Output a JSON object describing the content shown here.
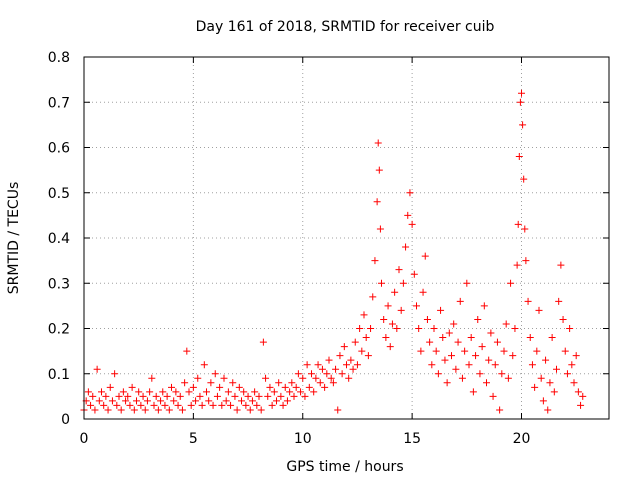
{
  "chart_data": {
    "type": "scatter",
    "title": "Day 161 of 2018, SRMTID for receiver cuib",
    "xlabel": "GPS time / hours",
    "ylabel": "SRMTID / TECUs",
    "xlim": [
      0,
      24
    ],
    "ylim": [
      0,
      0.8
    ],
    "xticks": [
      0,
      5,
      10,
      15,
      20
    ],
    "yticks": [
      0,
      0.1,
      0.2,
      0.3,
      0.4,
      0.5,
      0.6,
      0.7,
      0.8
    ],
    "xtick_labels": [
      "0",
      "5",
      "10",
      "15",
      "20"
    ],
    "ytick_labels": [
      "0",
      "0.1",
      "0.2",
      "0.3",
      "0.4",
      "0.5",
      "0.6",
      "0.7",
      "0.8"
    ],
    "grid": true,
    "marker": "+",
    "series": [
      {
        "name": "SRMTID",
        "color": "#ff0000",
        "points": [
          [
            0.0,
            0.02
          ],
          [
            0.1,
            0.04
          ],
          [
            0.2,
            0.06
          ],
          [
            0.3,
            0.03
          ],
          [
            0.4,
            0.05
          ],
          [
            0.5,
            0.02
          ],
          [
            0.6,
            0.11
          ],
          [
            0.7,
            0.04
          ],
          [
            0.8,
            0.06
          ],
          [
            0.9,
            0.03
          ],
          [
            1.0,
            0.05
          ],
          [
            1.1,
            0.02
          ],
          [
            1.2,
            0.07
          ],
          [
            1.3,
            0.04
          ],
          [
            1.4,
            0.1
          ],
          [
            1.5,
            0.03
          ],
          [
            1.6,
            0.05
          ],
          [
            1.7,
            0.02
          ],
          [
            1.8,
            0.06
          ],
          [
            1.9,
            0.04
          ],
          [
            2.0,
            0.05
          ],
          [
            2.1,
            0.03
          ],
          [
            2.2,
            0.07
          ],
          [
            2.3,
            0.02
          ],
          [
            2.4,
            0.04
          ],
          [
            2.5,
            0.06
          ],
          [
            2.6,
            0.03
          ],
          [
            2.7,
            0.05
          ],
          [
            2.8,
            0.02
          ],
          [
            2.9,
            0.04
          ],
          [
            3.0,
            0.06
          ],
          [
            3.1,
            0.09
          ],
          [
            3.2,
            0.03
          ],
          [
            3.3,
            0.05
          ],
          [
            3.4,
            0.02
          ],
          [
            3.5,
            0.04
          ],
          [
            3.6,
            0.06
          ],
          [
            3.7,
            0.03
          ],
          [
            3.8,
            0.05
          ],
          [
            3.9,
            0.02
          ],
          [
            4.0,
            0.07
          ],
          [
            4.1,
            0.04
          ],
          [
            4.2,
            0.06
          ],
          [
            4.3,
            0.03
          ],
          [
            4.4,
            0.05
          ],
          [
            4.5,
            0.02
          ],
          [
            4.6,
            0.08
          ],
          [
            4.7,
            0.15
          ],
          [
            4.8,
            0.06
          ],
          [
            4.9,
            0.03
          ],
          [
            5.0,
            0.07
          ],
          [
            5.1,
            0.04
          ],
          [
            5.2,
            0.09
          ],
          [
            5.3,
            0.05
          ],
          [
            5.4,
            0.03
          ],
          [
            5.5,
            0.12
          ],
          [
            5.6,
            0.06
          ],
          [
            5.7,
            0.04
          ],
          [
            5.8,
            0.08
          ],
          [
            5.9,
            0.03
          ],
          [
            6.0,
            0.1
          ],
          [
            6.1,
            0.05
          ],
          [
            6.2,
            0.07
          ],
          [
            6.3,
            0.03
          ],
          [
            6.4,
            0.09
          ],
          [
            6.5,
            0.04
          ],
          [
            6.6,
            0.06
          ],
          [
            6.7,
            0.03
          ],
          [
            6.8,
            0.08
          ],
          [
            6.9,
            0.05
          ],
          [
            7.0,
            0.02
          ],
          [
            7.1,
            0.07
          ],
          [
            7.2,
            0.04
          ],
          [
            7.3,
            0.06
          ],
          [
            7.4,
            0.03
          ],
          [
            7.5,
            0.05
          ],
          [
            7.6,
            0.02
          ],
          [
            7.7,
            0.04
          ],
          [
            7.8,
            0.06
          ],
          [
            7.9,
            0.03
          ],
          [
            8.0,
            0.05
          ],
          [
            8.1,
            0.02
          ],
          [
            8.2,
            0.17
          ],
          [
            8.3,
            0.09
          ],
          [
            8.4,
            0.05
          ],
          [
            8.5,
            0.07
          ],
          [
            8.6,
            0.03
          ],
          [
            8.7,
            0.06
          ],
          [
            8.8,
            0.04
          ],
          [
            8.9,
            0.08
          ],
          [
            9.0,
            0.05
          ],
          [
            9.1,
            0.03
          ],
          [
            9.2,
            0.07
          ],
          [
            9.3,
            0.04
          ],
          [
            9.4,
            0.06
          ],
          [
            9.5,
            0.08
          ],
          [
            9.6,
            0.05
          ],
          [
            9.7,
            0.07
          ],
          [
            9.8,
            0.1
          ],
          [
            9.9,
            0.06
          ],
          [
            10.0,
            0.09
          ],
          [
            10.1,
            0.05
          ],
          [
            10.2,
            0.12
          ],
          [
            10.3,
            0.07
          ],
          [
            10.4,
            0.1
          ],
          [
            10.5,
            0.06
          ],
          [
            10.6,
            0.09
          ],
          [
            10.7,
            0.12
          ],
          [
            10.8,
            0.08
          ],
          [
            10.9,
            0.11
          ],
          [
            11.0,
            0.07
          ],
          [
            11.1,
            0.1
          ],
          [
            11.2,
            0.13
          ],
          [
            11.3,
            0.09
          ],
          [
            11.4,
            0.08
          ],
          [
            11.5,
            0.11
          ],
          [
            11.6,
            0.02
          ],
          [
            11.7,
            0.14
          ],
          [
            11.8,
            0.1
          ],
          [
            11.9,
            0.16
          ],
          [
            12.0,
            0.12
          ],
          [
            12.1,
            0.09
          ],
          [
            12.2,
            0.13
          ],
          [
            12.3,
            0.11
          ],
          [
            12.4,
            0.17
          ],
          [
            12.5,
            0.12
          ],
          [
            12.6,
            0.2
          ],
          [
            12.7,
            0.15
          ],
          [
            12.8,
            0.23
          ],
          [
            12.9,
            0.18
          ],
          [
            13.0,
            0.14
          ],
          [
            13.1,
            0.2
          ],
          [
            13.2,
            0.27
          ],
          [
            13.3,
            0.35
          ],
          [
            13.4,
            0.48
          ],
          [
            13.45,
            0.61
          ],
          [
            13.5,
            0.55
          ],
          [
            13.55,
            0.42
          ],
          [
            13.6,
            0.3
          ],
          [
            13.7,
            0.22
          ],
          [
            13.8,
            0.18
          ],
          [
            13.9,
            0.25
          ],
          [
            14.0,
            0.16
          ],
          [
            14.1,
            0.21
          ],
          [
            14.2,
            0.28
          ],
          [
            14.3,
            0.2
          ],
          [
            14.4,
            0.33
          ],
          [
            14.5,
            0.24
          ],
          [
            14.6,
            0.3
          ],
          [
            14.7,
            0.38
          ],
          [
            14.8,
            0.45
          ],
          [
            14.9,
            0.5
          ],
          [
            15.0,
            0.43
          ],
          [
            15.1,
            0.32
          ],
          [
            15.2,
            0.25
          ],
          [
            15.3,
            0.2
          ],
          [
            15.4,
            0.15
          ],
          [
            15.5,
            0.28
          ],
          [
            15.6,
            0.36
          ],
          [
            15.7,
            0.22
          ],
          [
            15.8,
            0.17
          ],
          [
            15.9,
            0.12
          ],
          [
            16.0,
            0.2
          ],
          [
            16.1,
            0.15
          ],
          [
            16.2,
            0.1
          ],
          [
            16.3,
            0.24
          ],
          [
            16.4,
            0.18
          ],
          [
            16.5,
            0.13
          ],
          [
            16.6,
            0.08
          ],
          [
            16.7,
            0.19
          ],
          [
            16.8,
            0.14
          ],
          [
            16.9,
            0.21
          ],
          [
            17.0,
            0.11
          ],
          [
            17.1,
            0.17
          ],
          [
            17.2,
            0.26
          ],
          [
            17.3,
            0.09
          ],
          [
            17.4,
            0.15
          ],
          [
            17.5,
            0.3
          ],
          [
            17.6,
            0.12
          ],
          [
            17.7,
            0.18
          ],
          [
            17.8,
            0.06
          ],
          [
            17.9,
            0.14
          ],
          [
            18.0,
            0.22
          ],
          [
            18.1,
            0.1
          ],
          [
            18.2,
            0.16
          ],
          [
            18.3,
            0.25
          ],
          [
            18.4,
            0.08
          ],
          [
            18.5,
            0.13
          ],
          [
            18.6,
            0.19
          ],
          [
            18.7,
            0.05
          ],
          [
            18.8,
            0.12
          ],
          [
            18.9,
            0.17
          ],
          [
            19.0,
            0.02
          ],
          [
            19.1,
            0.1
          ],
          [
            19.2,
            0.15
          ],
          [
            19.3,
            0.21
          ],
          [
            19.4,
            0.09
          ],
          [
            19.5,
            0.3
          ],
          [
            19.6,
            0.14
          ],
          [
            19.7,
            0.2
          ],
          [
            19.8,
            0.34
          ],
          [
            19.85,
            0.43
          ],
          [
            19.9,
            0.58
          ],
          [
            19.95,
            0.7
          ],
          [
            20.0,
            0.72
          ],
          [
            20.05,
            0.65
          ],
          [
            20.1,
            0.53
          ],
          [
            20.15,
            0.42
          ],
          [
            20.2,
            0.35
          ],
          [
            20.3,
            0.26
          ],
          [
            20.4,
            0.18
          ],
          [
            20.5,
            0.12
          ],
          [
            20.6,
            0.07
          ],
          [
            20.7,
            0.15
          ],
          [
            20.8,
            0.24
          ],
          [
            20.9,
            0.09
          ],
          [
            21.0,
            0.04
          ],
          [
            21.1,
            0.13
          ],
          [
            21.2,
            0.02
          ],
          [
            21.3,
            0.08
          ],
          [
            21.4,
            0.18
          ],
          [
            21.5,
            0.06
          ],
          [
            21.6,
            0.11
          ],
          [
            21.7,
            0.26
          ],
          [
            21.8,
            0.34
          ],
          [
            21.9,
            0.22
          ],
          [
            22.0,
            0.15
          ],
          [
            22.1,
            0.1
          ],
          [
            22.2,
            0.2
          ],
          [
            22.3,
            0.12
          ],
          [
            22.4,
            0.08
          ],
          [
            22.5,
            0.14
          ],
          [
            22.6,
            0.06
          ],
          [
            22.7,
            0.03
          ],
          [
            22.8,
            0.05
          ]
        ]
      }
    ]
  }
}
